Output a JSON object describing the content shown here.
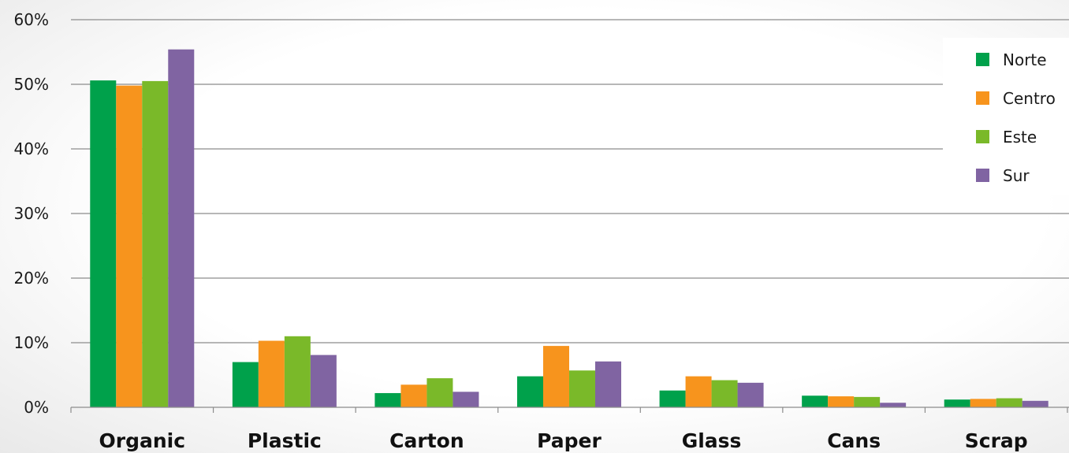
{
  "chart_data": {
    "type": "bar",
    "categories": [
      "Organic",
      "Plastic",
      "Carton",
      "Paper",
      "Glass",
      "Cans",
      "Scrap"
    ],
    "series": [
      {
        "name": "Norte",
        "color": "#00a14b",
        "values": [
          50.6,
          7.0,
          2.2,
          4.8,
          2.6,
          1.8,
          1.2
        ]
      },
      {
        "name": "Centro",
        "color": "#f7941d",
        "values": [
          49.8,
          10.3,
          3.5,
          9.5,
          4.8,
          1.7,
          1.3
        ]
      },
      {
        "name": "Este",
        "color": "#7ab929",
        "values": [
          50.5,
          11.0,
          4.5,
          5.7,
          4.2,
          1.6,
          1.4
        ]
      },
      {
        "name": "Sur",
        "color": "#8064a2",
        "values": [
          55.4,
          8.1,
          2.4,
          7.1,
          3.8,
          0.7,
          1.0
        ]
      }
    ],
    "yticks": [
      "0%",
      "10%",
      "20%",
      "30%",
      "40%",
      "50%",
      "60%"
    ],
    "ylim": [
      0,
      60
    ],
    "grid": true,
    "legend_position": "top-right",
    "title": "",
    "xlabel": "",
    "ylabel": ""
  }
}
